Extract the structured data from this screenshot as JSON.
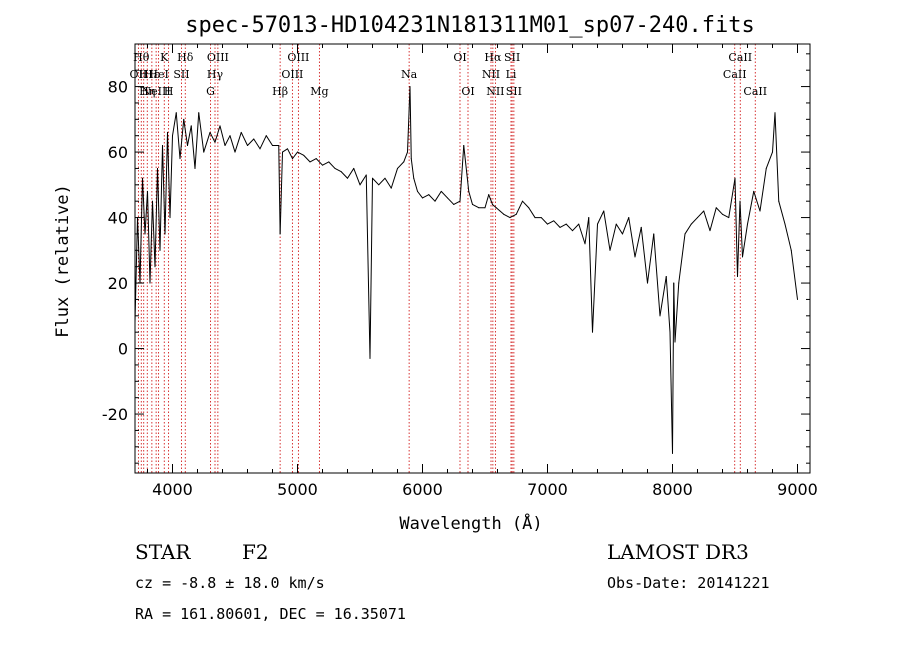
{
  "chart_data": {
    "type": "line",
    "title": "spec-57013-HD104231N181311M01_sp07-240.fits",
    "xlabel": "Wavelength (Å)",
    "ylabel": "Flux (relative)",
    "xlim": [
      3700,
      9100
    ],
    "ylim": [
      -38,
      93
    ],
    "xticks": [
      4000,
      5000,
      6000,
      7000,
      8000,
      9000
    ],
    "yticks": [
      -20,
      0,
      20,
      40,
      60,
      80
    ],
    "grid": false,
    "series": [
      {
        "x": [
          3700,
          3720,
          3740,
          3760,
          3780,
          3800,
          3820,
          3840,
          3860,
          3880,
          3900,
          3920,
          3940,
          3960,
          3980,
          4000,
          4030,
          4060,
          4090,
          4120,
          4150,
          4180,
          4210,
          4250,
          4300,
          4340,
          4380,
          4420,
          4460,
          4500,
          4550,
          4600,
          4650,
          4700,
          4750,
          4800,
          4850,
          4861,
          4880,
          4920,
          4960,
          5000,
          5050,
          5100,
          5150,
          5200,
          5250,
          5300,
          5350,
          5400,
          5450,
          5500,
          5550,
          5580,
          5600,
          5650,
          5700,
          5750,
          5800,
          5850,
          5880,
          5895,
          5900,
          5910,
          5930,
          5960,
          6000,
          6050,
          6100,
          6150,
          6200,
          6250,
          6300,
          6330,
          6370,
          6400,
          6450,
          6500,
          6530,
          6560,
          6590,
          6620,
          6650,
          6700,
          6750,
          6800,
          6850,
          6900,
          6950,
          7000,
          7050,
          7100,
          7150,
          7200,
          7250,
          7300,
          7330,
          7360,
          7400,
          7450,
          7500,
          7550,
          7600,
          7650,
          7700,
          7750,
          7800,
          7850,
          7900,
          7950,
          7980,
          8000,
          8010,
          8020,
          8050,
          8100,
          8150,
          8200,
          8250,
          8300,
          8350,
          8400,
          8450,
          8500,
          8520,
          8540,
          8560,
          8600,
          8650,
          8700,
          8750,
          8800,
          8820,
          8850,
          8900,
          8950,
          9000
        ],
        "y": [
          8,
          40,
          20,
          52,
          35,
          48,
          20,
          45,
          25,
          55,
          30,
          62,
          35,
          66,
          40,
          65,
          72,
          58,
          70,
          62,
          68,
          55,
          72,
          60,
          66,
          63,
          68,
          62,
          65,
          60,
          66,
          62,
          64,
          61,
          65,
          62,
          62,
          35,
          60,
          61,
          58,
          60,
          59,
          57,
          58,
          56,
          57,
          55,
          54,
          52,
          55,
          50,
          53,
          -3,
          52,
          50,
          52,
          49,
          55,
          57,
          60,
          75,
          80,
          58,
          52,
          48,
          46,
          47,
          45,
          48,
          46,
          44,
          45,
          62,
          48,
          44,
          43,
          43,
          47,
          44,
          43,
          42,
          41,
          40,
          41,
          45,
          43,
          40,
          40,
          38,
          39,
          37,
          38,
          36,
          38,
          32,
          40,
          5,
          38,
          42,
          30,
          38,
          35,
          40,
          28,
          37,
          20,
          35,
          10,
          22,
          5,
          -32,
          20,
          2,
          20,
          35,
          38,
          40,
          42,
          36,
          43,
          41,
          40,
          52,
          22,
          45,
          28,
          38,
          48,
          42,
          55,
          60,
          72,
          45,
          38,
          30,
          15
        ]
      }
    ],
    "line_markers": [
      {
        "wl": 3727,
        "label": "OII",
        "row": 1
      },
      {
        "wl": 3750,
        "label": "Hθ",
        "row": 0
      },
      {
        "wl": 3770,
        "label": "H",
        "row": 1
      },
      {
        "wl": 3798,
        "label": "Hη",
        "row": 2
      },
      {
        "wl": 3835,
        "label": "Hε",
        "row": 1
      },
      {
        "wl": 3869,
        "label": "NeIII",
        "row": 2
      },
      {
        "wl": 3889,
        "label": "HeI",
        "row": 1
      },
      {
        "wl": 3934,
        "label": "K",
        "row": 0
      },
      {
        "wl": 3969,
        "label": "H",
        "row": 2
      },
      {
        "wl": 4072,
        "label": "SII",
        "row": 1
      },
      {
        "wl": 4102,
        "label": "Hδ",
        "row": 0
      },
      {
        "wl": 4304,
        "label": "G",
        "row": 2
      },
      {
        "wl": 4340,
        "label": "Hγ",
        "row": 1
      },
      {
        "wl": 4363,
        "label": "OIII",
        "row": 0
      },
      {
        "wl": 4861,
        "label": "Hβ",
        "row": 2
      },
      {
        "wl": 4959,
        "label": "OIII",
        "row": 1
      },
      {
        "wl": 5007,
        "label": "OIII",
        "row": 0
      },
      {
        "wl": 5175,
        "label": "Mg",
        "row": 2
      },
      {
        "wl": 5893,
        "label": "Na",
        "row": 1
      },
      {
        "wl": 6300,
        "label": "OI",
        "row": 0
      },
      {
        "wl": 6364,
        "label": "OI",
        "row": 2
      },
      {
        "wl": 6548,
        "label": "NII",
        "row": 1
      },
      {
        "wl": 6563,
        "label": "Hα",
        "row": 0
      },
      {
        "wl": 6583,
        "label": "NII",
        "row": 2
      },
      {
        "wl": 6708,
        "label": "Li",
        "row": 1
      },
      {
        "wl": 6717,
        "label": "SII",
        "row": 0
      },
      {
        "wl": 6731,
        "label": "SII",
        "row": 2
      },
      {
        "wl": 8498,
        "label": "CaII",
        "row": 1
      },
      {
        "wl": 8542,
        "label": "CaII",
        "row": 0
      },
      {
        "wl": 8662,
        "label": "CaII",
        "row": 2
      }
    ],
    "marker_color": "#cc0000",
    "line_color": "#000000"
  },
  "info": {
    "class": "STAR",
    "subclass": "F2",
    "survey": "LAMOST DR3",
    "cz": "cz = -8.8 ± 18.0 km/s",
    "obs_date": "Obs-Date: 20141221",
    "radec": "RA = 161.80601, DEC =  16.35071"
  }
}
